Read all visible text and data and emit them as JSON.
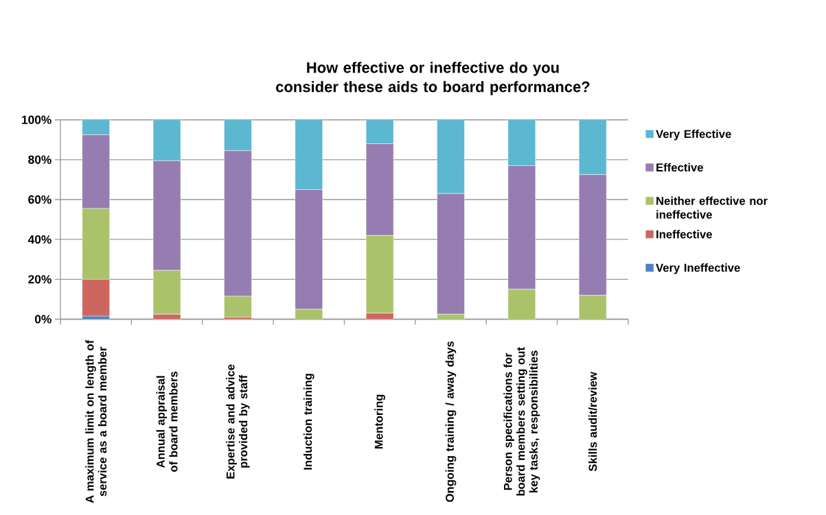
{
  "chart_data": {
    "type": "bar",
    "stacked": true,
    "title": "How effective or ineffective do you consider these aids to board performance?",
    "categories": [
      "A maximum limit on length of service as a board member",
      "Annual appraisal of board members",
      "Expertise and advice provided by staff",
      "Induction training",
      "Mentoring",
      "Ongoing training / away days",
      "Person specifications for board members setting out key tasks, responsibilities",
      "Skills audit/review"
    ],
    "series": [
      {
        "name": "Very Ineffective",
        "color": "#4f81bd",
        "values": [
          1.5,
          0,
          0,
          0,
          0,
          0,
          0,
          0
        ]
      },
      {
        "name": "Ineffective",
        "color": "#cd665f",
        "values": [
          18.5,
          2.5,
          1,
          0,
          3,
          0,
          0,
          0
        ]
      },
      {
        "name": "Neither effective nor ineffective",
        "color": "#aac36b",
        "values": [
          35.5,
          22,
          10.5,
          5,
          39,
          2.5,
          15,
          12
        ]
      },
      {
        "name": "Effective",
        "color": "#957cb1",
        "values": [
          37,
          55,
          73,
          60,
          46,
          60.5,
          62,
          60.5
        ]
      },
      {
        "name": "Very Effective",
        "color": "#5bb8d0",
        "values": [
          7.5,
          20.5,
          15.5,
          35,
          12,
          37,
          23,
          27.5
        ]
      }
    ],
    "ylim": [
      0,
      100
    ],
    "yticks": [
      {
        "value": 0,
        "label": "0%"
      },
      {
        "value": 20,
        "label": "20%"
      },
      {
        "value": 40,
        "label": "40%"
      },
      {
        "value": 60,
        "label": "60%"
      },
      {
        "value": 80,
        "label": "80%"
      },
      {
        "value": 100,
        "label": "100%"
      }
    ],
    "grid": "y",
    "legend": "right"
  }
}
